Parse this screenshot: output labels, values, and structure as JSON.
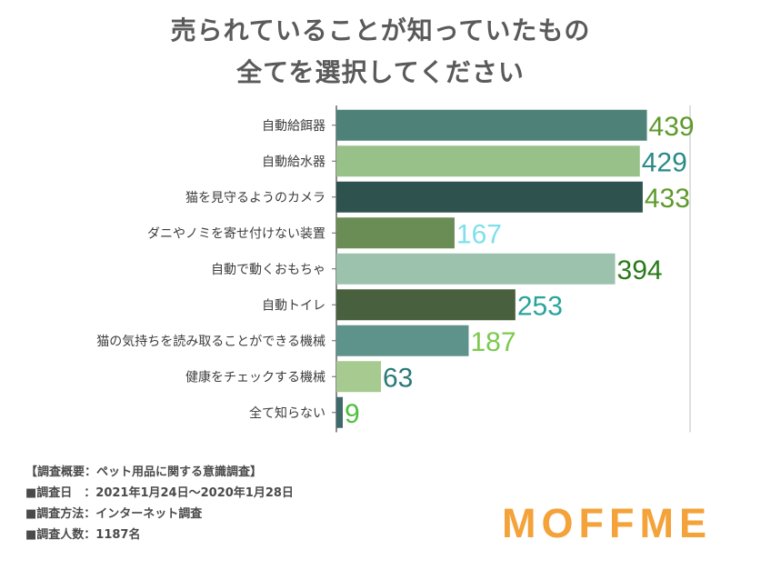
{
  "title_line1": "売られていることが知っていたもの",
  "title_line2": "全てを選択してください",
  "chart_data": {
    "type": "bar",
    "orientation": "horizontal",
    "title": "売られていることが知っていたもの 全てを選択してください",
    "categories": [
      "自動給餌器",
      "自動給水器",
      "猫を見守るようのカメラ",
      "ダニやノミを寄せ付けない装置",
      "自動で動くおもちゃ",
      "自動トイレ",
      "猫の気持ちを読み取ることができる機械",
      "健康をチェックする機械",
      "全て知らない"
    ],
    "values": [
      439,
      429,
      433,
      167,
      394,
      253,
      187,
      63,
      9
    ],
    "xlim": [
      0,
      500
    ],
    "bar_colors": [
      "#4e8278",
      "#98c189",
      "#2e534f",
      "#6a8c55",
      "#9cc2ad",
      "#48603e",
      "#5e938b",
      "#a6ca8f",
      "#3e6a6c"
    ],
    "label_colors": [
      "#5e9a2c",
      "#2a8a86",
      "#5e9a2c",
      "#7fe0ea",
      "#2a7a1a",
      "#2aa39b",
      "#7cc94e",
      "#2a7a78",
      "#4ebf3e"
    ],
    "grid": true
  },
  "notes": {
    "line1": "【調査概要：ペット用品に関する意識調査】",
    "line2": "■調査日　：2021年1月24日〜2020年1月28日",
    "line3": "■調査方法：インターネット調査",
    "line4": "■調査人数：1187名"
  },
  "logo_text": "MOFFME",
  "colors": {
    "title": "#5a5a5a",
    "logo": "#f4a23a",
    "axis": "#666666",
    "grid": "#d4d4d4"
  }
}
